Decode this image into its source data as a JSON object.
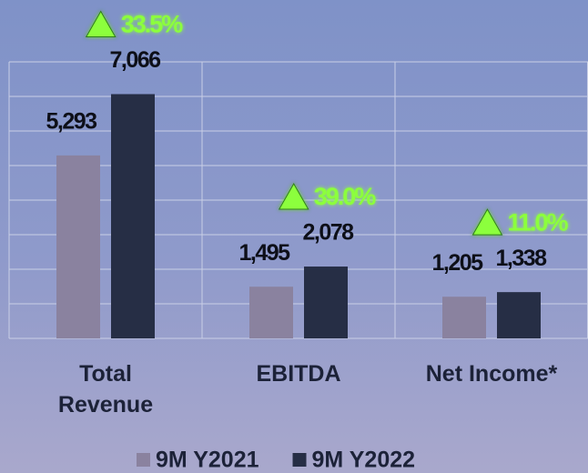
{
  "chart_data": {
    "type": "bar",
    "categories": [
      "Total Revenue",
      "EBITDA",
      "Net Income*"
    ],
    "series": [
      {
        "name": "9M Y2021",
        "color": "#8a829f",
        "values": [
          5293,
          1495,
          1205
        ],
        "value_labels": [
          "5,293",
          "1,495",
          "1,205"
        ]
      },
      {
        "name": "9M Y2022",
        "color": "#262e45",
        "values": [
          7066,
          2078,
          1338
        ],
        "value_labels": [
          "7,066",
          "2,078",
          "1,338"
        ]
      }
    ],
    "annotations": [
      "33.5%",
      "39.0%",
      "11.0%"
    ],
    "ylim": [
      0,
      8000
    ],
    "yticks": [
      0,
      1000,
      2000,
      3000,
      4000,
      5000,
      6000,
      7000,
      8000
    ],
    "grid": true,
    "legend": "bottom"
  }
}
